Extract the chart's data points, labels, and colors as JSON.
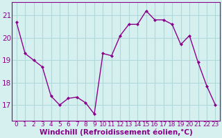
{
  "x": [
    0,
    1,
    2,
    3,
    4,
    5,
    6,
    7,
    8,
    9,
    10,
    11,
    12,
    13,
    14,
    15,
    16,
    17,
    18,
    19,
    20,
    21,
    22,
    23
  ],
  "y": [
    20.7,
    19.3,
    19.0,
    18.7,
    17.4,
    17.0,
    17.3,
    17.35,
    17.1,
    16.6,
    19.3,
    19.2,
    20.1,
    20.6,
    20.6,
    21.2,
    20.8,
    20.8,
    20.6,
    19.7,
    20.1,
    18.9,
    17.85,
    17.0
  ],
  "line_color": "#8b008b",
  "marker": "D",
  "marker_size": 2,
  "bg_color": "#d6f0f0",
  "grid_color": "#b0d8d8",
  "xlabel": "Windchill (Refroidissement éolien,°C)",
  "xlabel_color": "#8b008b",
  "tick_color": "#8b008b",
  "ylabel_ticks": [
    17,
    18,
    19,
    20,
    21
  ],
  "xlim": [
    -0.5,
    23.5
  ],
  "ylim": [
    16.3,
    21.6
  ],
  "xtick_labels": [
    "0",
    "1",
    "2",
    "3",
    "4",
    "5",
    "6",
    "7",
    "8",
    "9",
    "10",
    "11",
    "12",
    "13",
    "14",
    "15",
    "16",
    "17",
    "18",
    "19",
    "20",
    "21",
    "22",
    "23"
  ],
  "tick_fontsize": 6.5,
  "xlabel_fontsize": 7.5,
  "ytick_fontsize": 7.5,
  "line_width": 1.0
}
